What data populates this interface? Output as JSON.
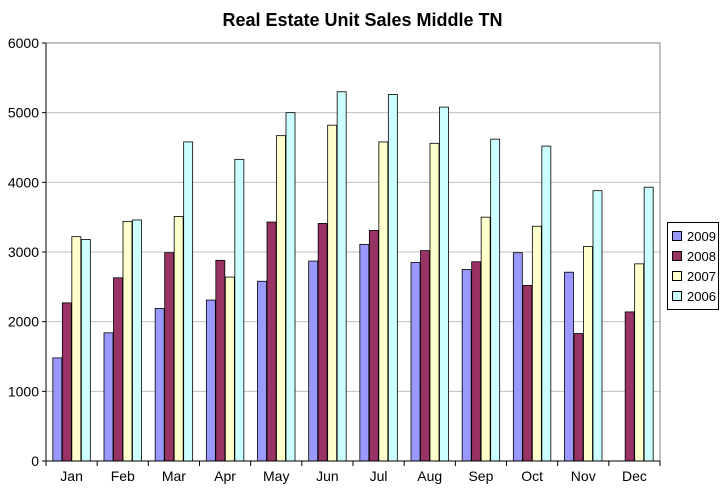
{
  "chart_data": {
    "type": "bar",
    "title": "Real Estate Unit Sales Middle TN",
    "xlabel": "",
    "ylabel": "",
    "ylim": [
      0,
      6000
    ],
    "yticks": [
      "0",
      "1000",
      "2000",
      "3000",
      "4000",
      "5000",
      "6000"
    ],
    "grid": true,
    "legend_position": "right",
    "categories": [
      "Jan",
      "Feb",
      "Mar",
      "Apr",
      "May",
      "Jun",
      "Jul",
      "Aug",
      "Sep",
      "Oct",
      "Nov",
      "Dec"
    ],
    "series": [
      {
        "name": "2009",
        "color": "#9999ff",
        "values": [
          1480,
          1840,
          2190,
          2310,
          2580,
          2870,
          3110,
          2850,
          2750,
          2990,
          2710,
          null
        ]
      },
      {
        "name": "2008",
        "color": "#993366",
        "values": [
          2270,
          2630,
          2990,
          2880,
          3430,
          3410,
          3310,
          3020,
          2860,
          2520,
          1830,
          2140
        ]
      },
      {
        "name": "2007",
        "color": "#ffffcc",
        "values": [
          3220,
          3440,
          3510,
          2640,
          4670,
          4820,
          4580,
          4560,
          3500,
          3370,
          3080,
          2830
        ]
      },
      {
        "name": "2006",
        "color": "#ccffff",
        "values": [
          3180,
          3460,
          4580,
          4330,
          5000,
          5300,
          5260,
          5080,
          4620,
          4520,
          3880,
          3930
        ]
      }
    ]
  }
}
